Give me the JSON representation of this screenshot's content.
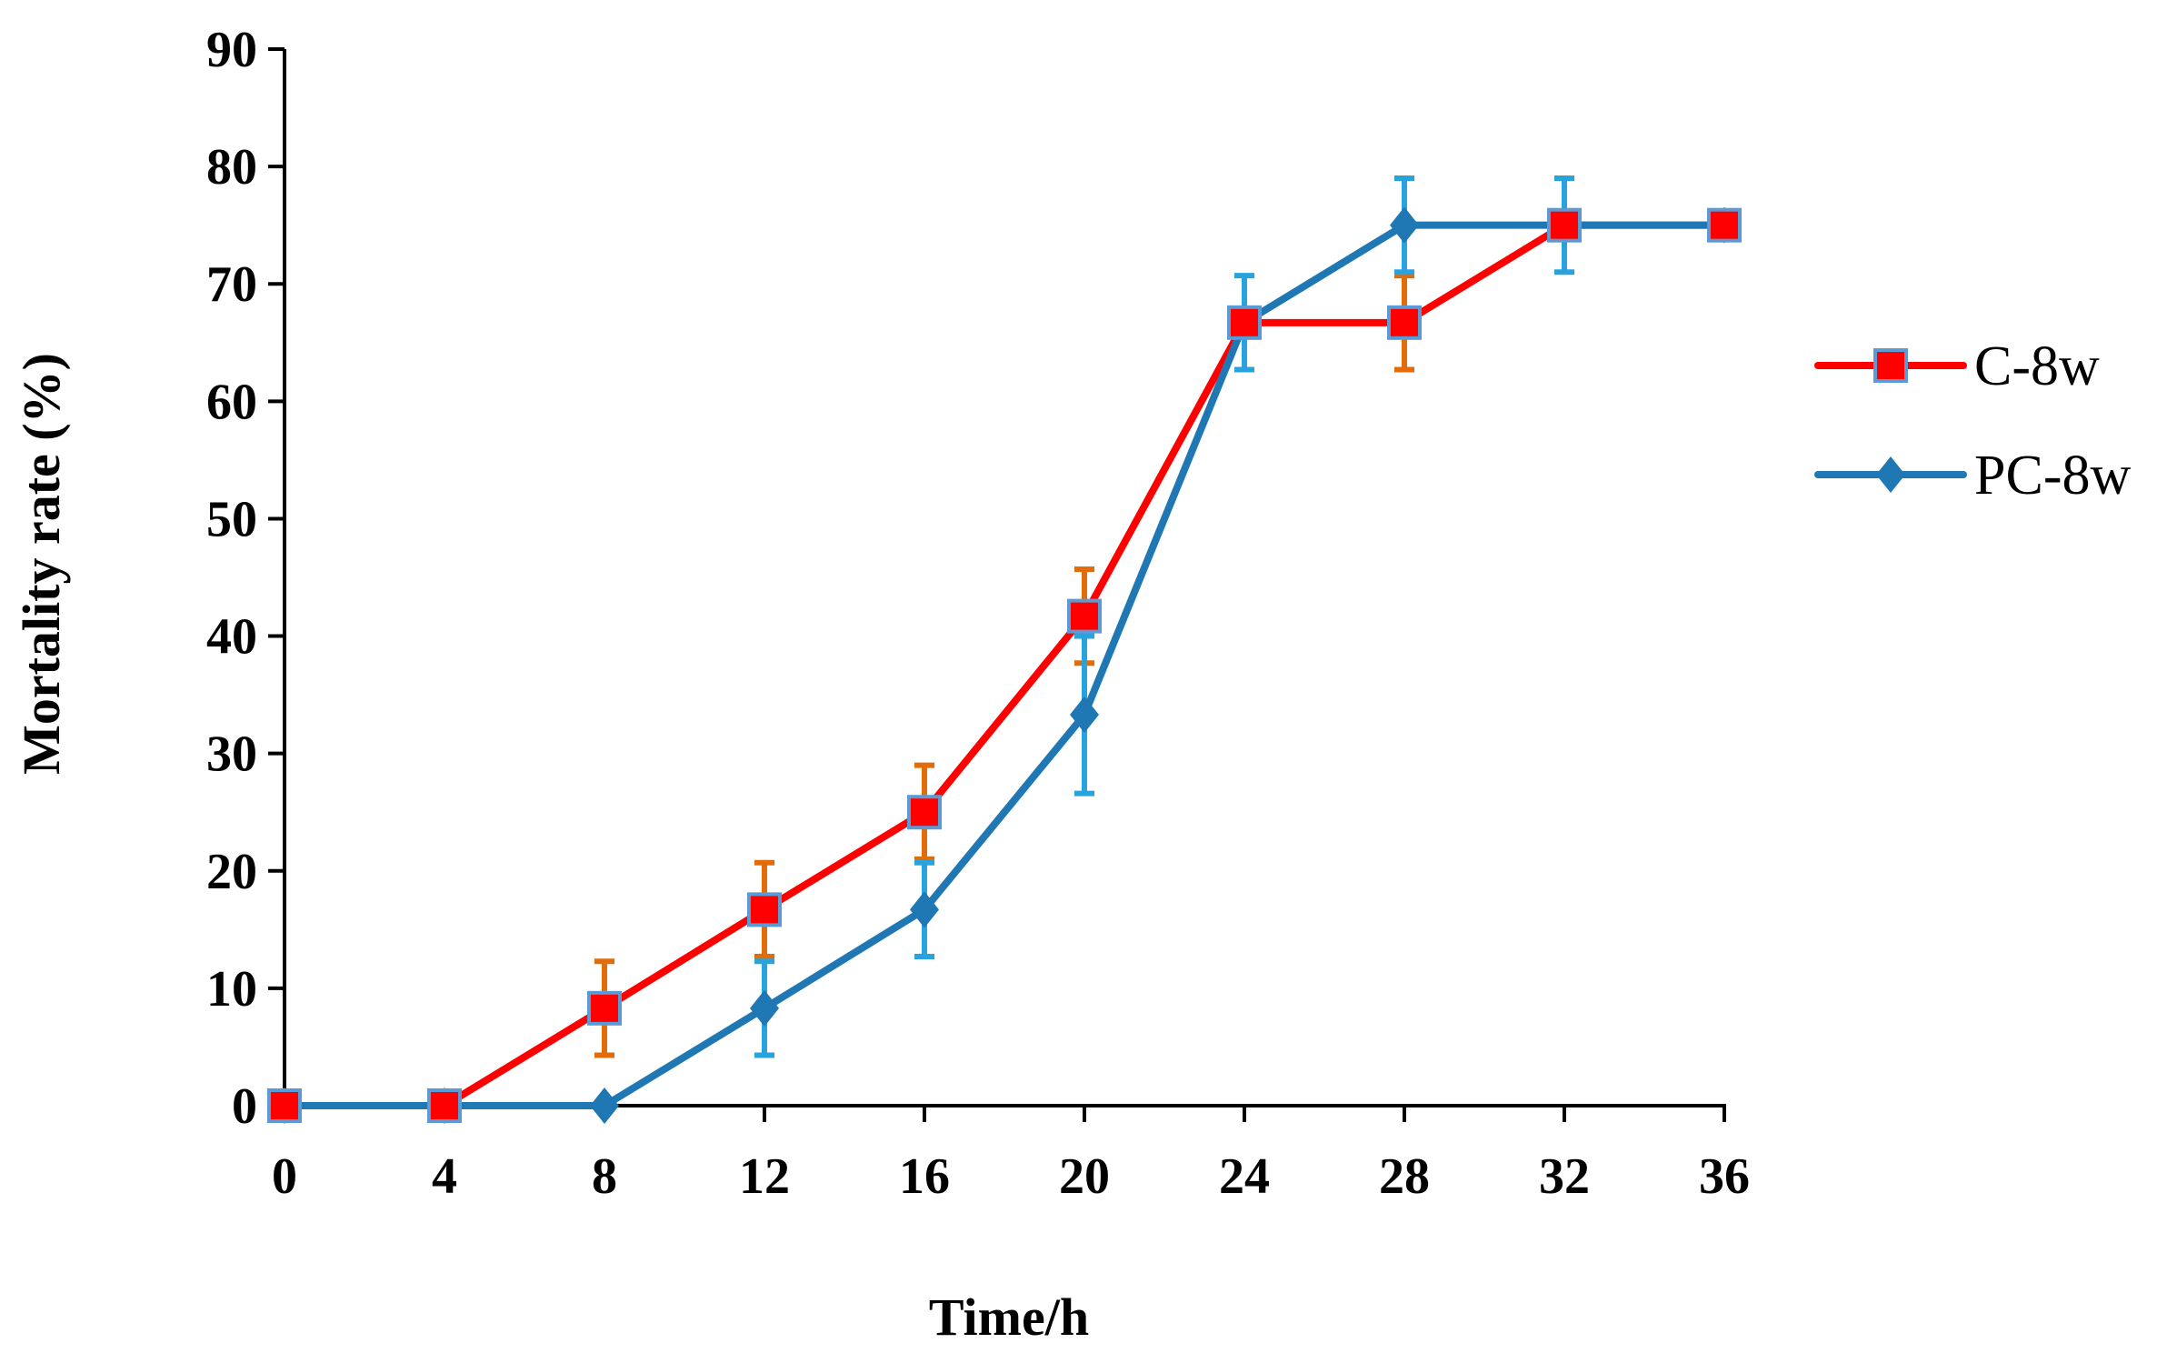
{
  "chart_data": {
    "type": "line",
    "title": "",
    "xlabel": "Time/h",
    "ylabel": "Mortality rate (%)",
    "x": [
      0,
      4,
      8,
      12,
      16,
      20,
      24,
      28,
      32,
      36
    ],
    "xlim": [
      0,
      36
    ],
    "ylim": [
      0,
      90
    ],
    "xticks": [
      "0",
      "4",
      "8",
      "12",
      "16",
      "20",
      "24",
      "28",
      "32",
      "36"
    ],
    "yticks": [
      "0",
      "10",
      "20",
      "30",
      "40",
      "50",
      "60",
      "70",
      "80",
      "90"
    ],
    "grid": false,
    "legend_position": "right",
    "series": [
      {
        "name": "C-8w",
        "marker": "square",
        "color": "#ff0000",
        "marker_color": "#ff0000",
        "marker_edge": "#5b9bd5",
        "error_color": "#e36c0a",
        "values": [
          0,
          0,
          8.3,
          16.7,
          25,
          41.7,
          66.7,
          66.7,
          75,
          75
        ],
        "errors": [
          0,
          0,
          4,
          4,
          4,
          4,
          0,
          4,
          0,
          0
        ]
      },
      {
        "name": "PC-8w",
        "marker": "diamond",
        "color": "#1f78b4",
        "marker_color": "#1f78b4",
        "error_color": "#29a3de",
        "values": [
          0,
          0,
          0,
          8.3,
          16.7,
          33.3,
          66.7,
          75,
          75,
          75
        ],
        "errors": [
          0,
          0,
          0,
          4,
          4,
          6.7,
          4,
          4,
          4,
          0
        ]
      }
    ]
  }
}
